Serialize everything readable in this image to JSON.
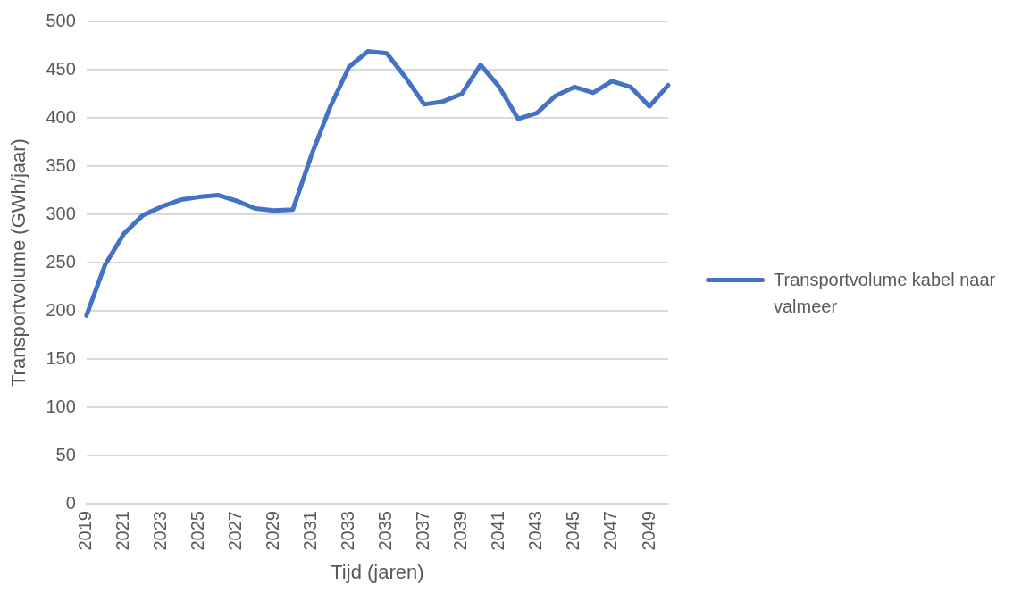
{
  "chart_data": {
    "type": "line",
    "xlabel": "Tijd (jaren)",
    "ylabel": "Transportvolume (GWh/jaar)",
    "categories": [
      "2019",
      null,
      "2021",
      null,
      "2023",
      null,
      "2025",
      null,
      "2027",
      null,
      "2029",
      null,
      "2031",
      null,
      "2033",
      null,
      "2035",
      null,
      "2037",
      null,
      "2039",
      null,
      "2041",
      null,
      "2043",
      null,
      "2045",
      null,
      "2047",
      null,
      "2049",
      null
    ],
    "series": [
      {
        "name": "Transportvolume kabel naar valmeer",
        "color": "#4472c4",
        "values": [
          195,
          248,
          280,
          299,
          308,
          315,
          318,
          320,
          314,
          306,
          304,
          305,
          362,
          412,
          453,
          469,
          467,
          442,
          414,
          417,
          425,
          455,
          432,
          399,
          405,
          423,
          432,
          426,
          438,
          432,
          412,
          434
        ]
      }
    ],
    "ylim": [
      0,
      500
    ],
    "yticks": [
      0,
      50,
      100,
      150,
      200,
      250,
      300,
      350,
      400,
      450,
      500
    ],
    "grid": "y",
    "legend": "right",
    "marker": "none",
    "line_style": "solid"
  }
}
